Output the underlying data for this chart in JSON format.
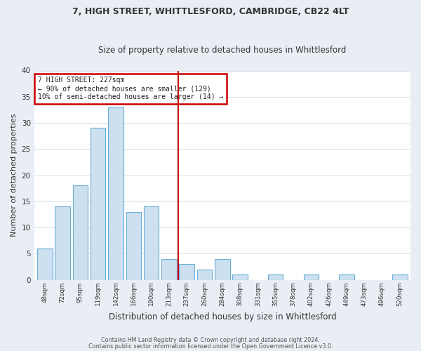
{
  "title1": "7, HIGH STREET, WHITTLESFORD, CAMBRIDGE, CB22 4LT",
  "title2": "Size of property relative to detached houses in Whittlesford",
  "xlabel": "Distribution of detached houses by size in Whittlesford",
  "ylabel": "Number of detached properties",
  "bin_labels": [
    "48sqm",
    "72sqm",
    "95sqm",
    "119sqm",
    "142sqm",
    "166sqm",
    "190sqm",
    "213sqm",
    "237sqm",
    "260sqm",
    "284sqm",
    "308sqm",
    "331sqm",
    "355sqm",
    "378sqm",
    "402sqm",
    "426sqm",
    "449sqm",
    "473sqm",
    "496sqm",
    "520sqm"
  ],
  "bar_values": [
    6,
    14,
    18,
    29,
    33,
    13,
    14,
    4,
    3,
    2,
    4,
    1,
    0,
    1,
    0,
    1,
    0,
    1,
    0,
    0,
    1
  ],
  "bar_color": "#cce0f0",
  "bar_edge_color": "#6aaed6",
  "vline_color": "#cc0000",
  "annotation_line1": "7 HIGH STREET: 227sqm",
  "annotation_line2": "← 90% of detached houses are smaller (129)",
  "annotation_line3": "10% of semi-detached houses are larger (14) →",
  "annotation_box_edge_color": "#cc0000",
  "ylim": [
    0,
    40
  ],
  "yticks": [
    0,
    5,
    10,
    15,
    20,
    25,
    30,
    35,
    40
  ],
  "footnote1": "Contains HM Land Registry data © Crown copyright and database right 2024.",
  "footnote2": "Contains public sector information licensed under the Open Government Licence v3.0.",
  "fig_bg_color": "#e8eef4",
  "plot_bg_color": "#ffffff",
  "grid_color": "#d0d8e0"
}
